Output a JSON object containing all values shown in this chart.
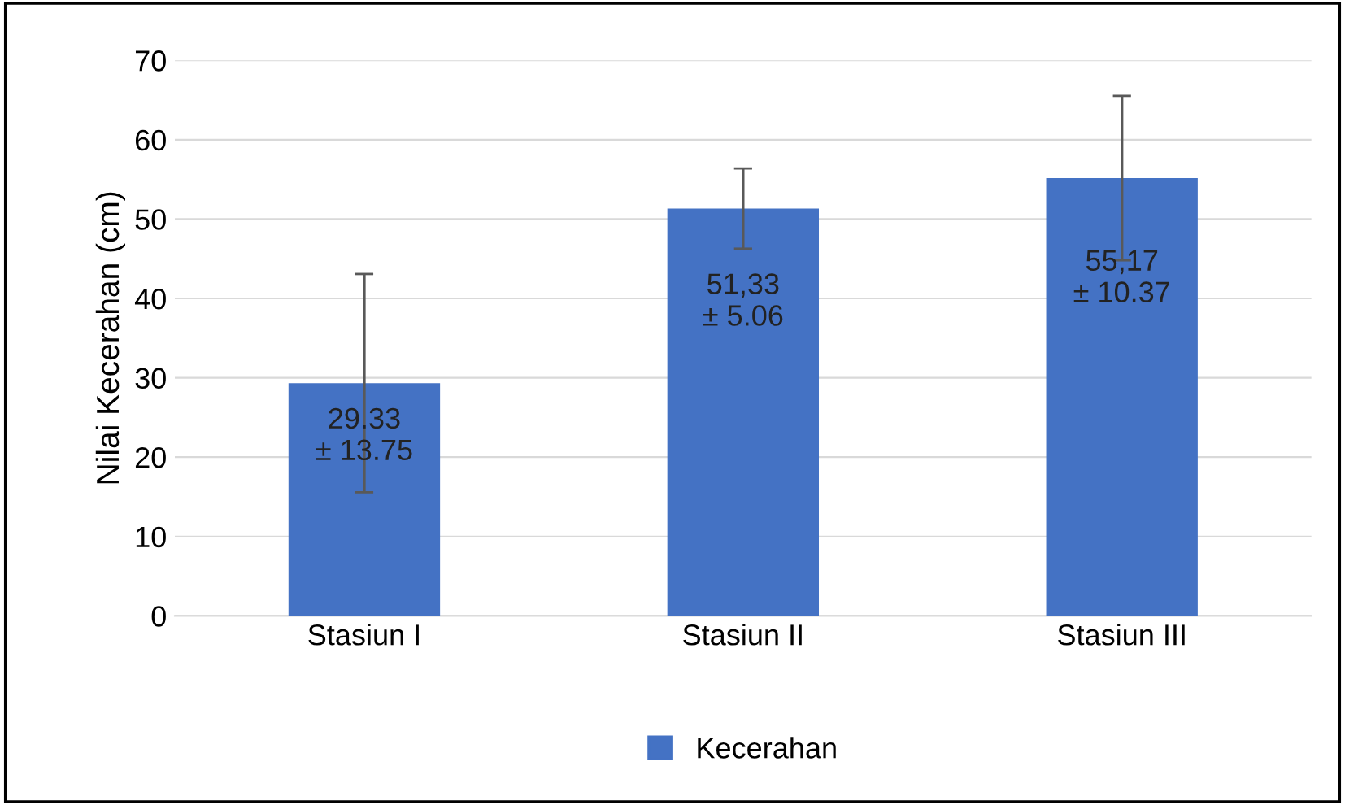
{
  "chart_data": {
    "type": "bar",
    "ylabel": "Nilai Kecerahan (cm)",
    "categories": [
      "Stasiun I",
      "Stasiun II",
      "Stasiun III"
    ],
    "series": [
      {
        "name": "Kecerahan",
        "color": "#4472c4",
        "values": [
          29.33,
          51.33,
          55.17
        ],
        "errors": [
          13.75,
          5.06,
          10.37
        ],
        "value_labels": [
          "29.33\n± 13.75",
          "51,33\n± 5.06",
          "55,17\n± 10.37"
        ]
      }
    ],
    "ylim": [
      0,
      70
    ],
    "yticks": [
      0,
      10,
      20,
      30,
      40,
      50,
      60,
      70
    ],
    "grid": "y",
    "legend": "bottom"
  }
}
